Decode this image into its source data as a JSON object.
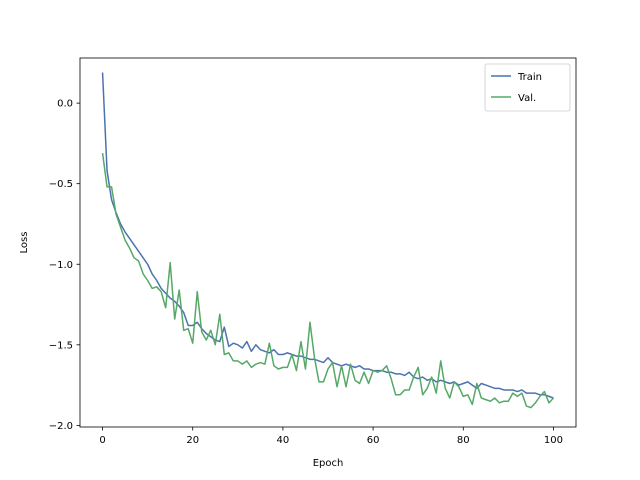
{
  "chart_data": {
    "type": "line",
    "xlabel": "Epoch",
    "ylabel": "Loss",
    "xlim": [
      -5,
      105
    ],
    "ylim": [
      -2.01,
      0.28
    ],
    "xticks": [
      0,
      20,
      40,
      60,
      80,
      100
    ],
    "xtick_labels": [
      "0",
      "20",
      "40",
      "60",
      "80",
      "100"
    ],
    "yticks": [
      0.0,
      -0.5,
      -1.0,
      -1.5,
      -2.0
    ],
    "ytick_labels": [
      "0.0",
      "−0.5",
      "−1.0",
      "−1.5",
      "−2.0"
    ],
    "grid": false,
    "legend_position": "top-right",
    "series": [
      {
        "name": "Train",
        "color": "#4c72b0",
        "x": [
          0,
          1,
          2,
          3,
          4,
          5,
          6,
          7,
          8,
          9,
          10,
          11,
          12,
          13,
          14,
          15,
          16,
          17,
          18,
          19,
          20,
          21,
          22,
          23,
          24,
          25,
          26,
          27,
          28,
          29,
          30,
          31,
          32,
          33,
          34,
          35,
          36,
          37,
          38,
          39,
          40,
          41,
          42,
          43,
          44,
          45,
          46,
          47,
          48,
          49,
          50,
          51,
          52,
          53,
          54,
          55,
          56,
          57,
          58,
          59,
          60,
          61,
          62,
          63,
          64,
          65,
          66,
          67,
          68,
          69,
          70,
          71,
          72,
          73,
          74,
          75,
          76,
          77,
          78,
          79,
          80,
          81,
          82,
          83,
          84,
          85,
          86,
          87,
          88,
          89,
          90,
          91,
          92,
          93,
          94,
          95,
          96,
          97,
          98,
          99,
          100
        ],
        "y": [
          0.19,
          -0.42,
          -0.6,
          -0.68,
          -0.75,
          -0.8,
          -0.84,
          -0.88,
          -0.92,
          -0.96,
          -1.0,
          -1.06,
          -1.1,
          -1.15,
          -1.18,
          -1.21,
          -1.23,
          -1.26,
          -1.3,
          -1.38,
          -1.38,
          -1.36,
          -1.4,
          -1.43,
          -1.45,
          -1.47,
          -1.48,
          -1.39,
          -1.51,
          -1.49,
          -1.5,
          -1.52,
          -1.48,
          -1.54,
          -1.5,
          -1.53,
          -1.54,
          -1.55,
          -1.53,
          -1.56,
          -1.56,
          -1.55,
          -1.56,
          -1.57,
          -1.57,
          -1.58,
          -1.59,
          -1.59,
          -1.6,
          -1.61,
          -1.58,
          -1.61,
          -1.62,
          -1.63,
          -1.62,
          -1.63,
          -1.64,
          -1.63,
          -1.65,
          -1.65,
          -1.66,
          -1.66,
          -1.66,
          -1.67,
          -1.67,
          -1.68,
          -1.68,
          -1.69,
          -1.67,
          -1.7,
          -1.71,
          -1.7,
          -1.72,
          -1.71,
          -1.73,
          -1.72,
          -1.73,
          -1.74,
          -1.73,
          -1.75,
          -1.74,
          -1.73,
          -1.75,
          -1.77,
          -1.74,
          -1.75,
          -1.76,
          -1.77,
          -1.77,
          -1.78,
          -1.78,
          -1.78,
          -1.79,
          -1.78,
          -1.8,
          -1.8,
          -1.8,
          -1.81,
          -1.81,
          -1.82,
          -1.83
        ]
      },
      {
        "name": "Val.",
        "color": "#55a868",
        "x": [
          0,
          1,
          2,
          3,
          4,
          5,
          6,
          7,
          8,
          9,
          10,
          11,
          12,
          13,
          14,
          15,
          16,
          17,
          18,
          19,
          20,
          21,
          22,
          23,
          24,
          25,
          26,
          27,
          28,
          29,
          30,
          31,
          32,
          33,
          34,
          35,
          36,
          37,
          38,
          39,
          40,
          41,
          42,
          43,
          44,
          45,
          46,
          47,
          48,
          49,
          50,
          51,
          52,
          53,
          54,
          55,
          56,
          57,
          58,
          59,
          60,
          61,
          62,
          63,
          64,
          65,
          66,
          67,
          68,
          69,
          70,
          71,
          72,
          73,
          74,
          75,
          76,
          77,
          78,
          79,
          80,
          81,
          82,
          83,
          84,
          85,
          86,
          87,
          88,
          89,
          90,
          91,
          92,
          93,
          94,
          95,
          96,
          97,
          98,
          99,
          100
        ],
        "y": [
          -0.31,
          -0.52,
          -0.52,
          -0.69,
          -0.77,
          -0.85,
          -0.9,
          -0.96,
          -0.98,
          -1.06,
          -1.1,
          -1.15,
          -1.14,
          -1.17,
          -1.27,
          -0.99,
          -1.34,
          -1.16,
          -1.41,
          -1.4,
          -1.49,
          -1.17,
          -1.42,
          -1.47,
          -1.41,
          -1.5,
          -1.31,
          -1.56,
          -1.55,
          -1.6,
          -1.6,
          -1.62,
          -1.6,
          -1.64,
          -1.62,
          -1.61,
          -1.62,
          -1.49,
          -1.63,
          -1.65,
          -1.64,
          -1.64,
          -1.56,
          -1.66,
          -1.48,
          -1.65,
          -1.36,
          -1.58,
          -1.73,
          -1.73,
          -1.65,
          -1.61,
          -1.76,
          -1.63,
          -1.76,
          -1.62,
          -1.72,
          -1.74,
          -1.67,
          -1.74,
          -1.66,
          -1.67,
          -1.66,
          -1.63,
          -1.71,
          -1.81,
          -1.81,
          -1.78,
          -1.78,
          -1.7,
          -1.64,
          -1.81,
          -1.77,
          -1.7,
          -1.8,
          -1.6,
          -1.77,
          -1.83,
          -1.73,
          -1.76,
          -1.82,
          -1.81,
          -1.87,
          -1.74,
          -1.83,
          -1.84,
          -1.85,
          -1.83,
          -1.86,
          -1.85,
          -1.85,
          -1.8,
          -1.82,
          -1.8,
          -1.88,
          -1.89,
          -1.86,
          -1.82,
          -1.79,
          -1.86,
          -1.83
        ]
      }
    ]
  }
}
